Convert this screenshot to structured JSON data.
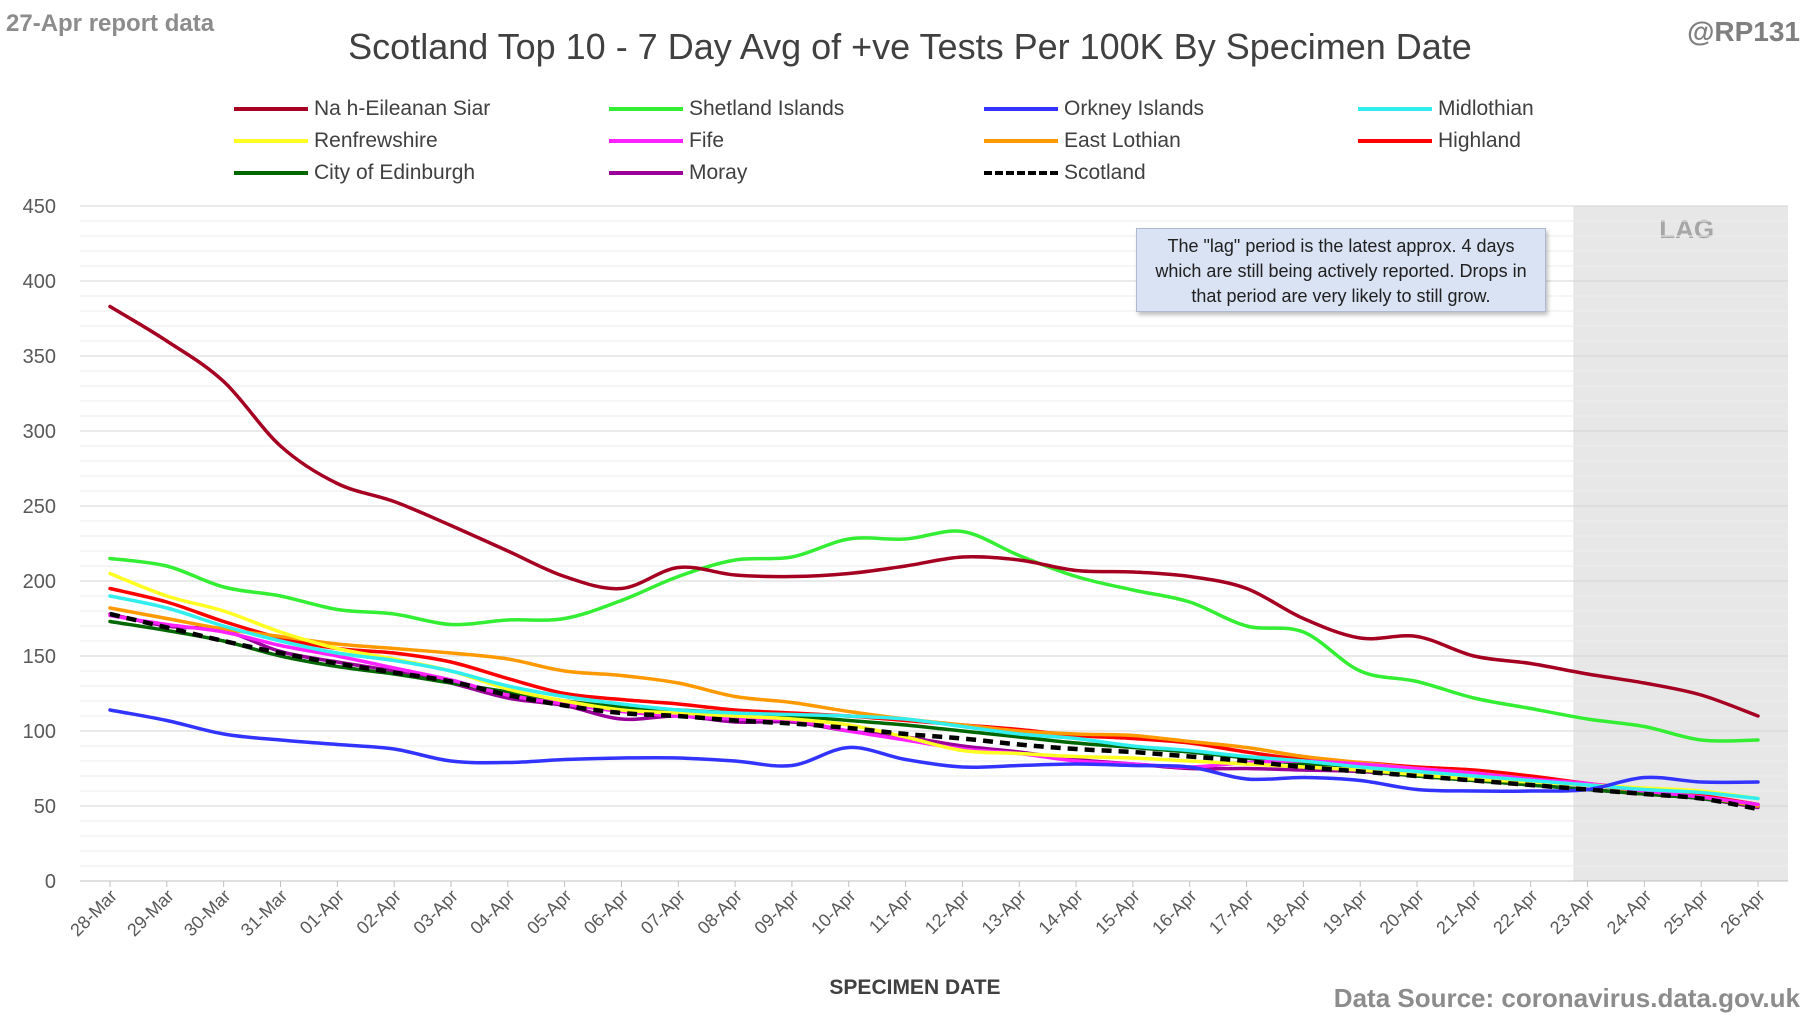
{
  "report_label": "27-Apr report data",
  "handle": "@RP131",
  "source": "Data Source: coronavirus.data.gov.uk",
  "note": "The \"lag\" period is the latest approx. 4 days which are still being actively reported. Drops in that period are very likely to still grow.",
  "chart_data": {
    "type": "line",
    "title": "Scotland Top 10 - 7 Day Avg of +ve Tests Per 100K By Specimen Date",
    "xlabel": "SPECIMEN DATE",
    "ylabel": "",
    "ylim": [
      0,
      450
    ],
    "yticks": [
      0,
      50,
      100,
      150,
      200,
      250,
      300,
      350,
      400,
      450
    ],
    "grid": true,
    "legend_position": "top",
    "lag_region": {
      "label": "LAG",
      "from": "23-Apr",
      "to": "26-Apr"
    },
    "categories": [
      "28-Mar",
      "29-Mar",
      "30-Mar",
      "31-Mar",
      "01-Apr",
      "02-Apr",
      "03-Apr",
      "04-Apr",
      "05-Apr",
      "06-Apr",
      "07-Apr",
      "08-Apr",
      "09-Apr",
      "10-Apr",
      "11-Apr",
      "12-Apr",
      "13-Apr",
      "14-Apr",
      "15-Apr",
      "16-Apr",
      "17-Apr",
      "18-Apr",
      "19-Apr",
      "20-Apr",
      "21-Apr",
      "22-Apr",
      "23-Apr",
      "24-Apr",
      "25-Apr",
      "26-Apr"
    ],
    "series": [
      {
        "name": "Na h-Eileanan Siar",
        "color": "#a50021",
        "dashed": false,
        "values": [
          383,
          360,
          333,
          290,
          265,
          253,
          237,
          220,
          203,
          195,
          209,
          204,
          203,
          205,
          210,
          216,
          214,
          207,
          206,
          203,
          195,
          175,
          162,
          163,
          150,
          145,
          138,
          132,
          124,
          110
        ]
      },
      {
        "name": "Shetland Islands",
        "color": "#33ee33",
        "dashed": false,
        "values": [
          215,
          210,
          196,
          190,
          181,
          178,
          171,
          174,
          175,
          187,
          203,
          214,
          216,
          228,
          228,
          233,
          217,
          203,
          194,
          186,
          170,
          166,
          140,
          133,
          122,
          115,
          108,
          103,
          94,
          94
        ]
      },
      {
        "name": "Orkney Islands",
        "color": "#3333ff",
        "dashed": false,
        "values": [
          114,
          107,
          98,
          94,
          91,
          88,
          80,
          79,
          81,
          82,
          82,
          80,
          77,
          89,
          81,
          76,
          77,
          78,
          77,
          76,
          68,
          69,
          67,
          61,
          60,
          60,
          61,
          69,
          66,
          66
        ]
      },
      {
        "name": "Midlothian",
        "color": "#33eeee",
        "dashed": false,
        "values": [
          190,
          182,
          170,
          160,
          152,
          147,
          140,
          130,
          123,
          118,
          114,
          112,
          111,
          110,
          108,
          103,
          98,
          95,
          90,
          87,
          83,
          80,
          76,
          73,
          70,
          67,
          64,
          61,
          59,
          55
        ]
      },
      {
        "name": "Renfrewshire",
        "color": "#ffff22",
        "dashed": false,
        "values": [
          205,
          190,
          180,
          166,
          155,
          148,
          140,
          128,
          120,
          114,
          112,
          110,
          108,
          104,
          96,
          87,
          85,
          83,
          82,
          80,
          78,
          76,
          74,
          71,
          68,
          66,
          64,
          62,
          60,
          55
        ]
      },
      {
        "name": "Fife",
        "color": "#ff22ff",
        "dashed": false,
        "values": [
          177,
          171,
          166,
          157,
          150,
          142,
          134,
          124,
          118,
          113,
          110,
          108,
          107,
          100,
          94,
          88,
          85,
          80,
          78,
          76,
          79,
          80,
          78,
          75,
          72,
          68,
          65,
          60,
          56,
          51
        ]
      },
      {
        "name": "East Lothian",
        "color": "#ff9900",
        "dashed": false,
        "values": [
          182,
          175,
          168,
          163,
          158,
          155,
          152,
          148,
          140,
          137,
          132,
          123,
          119,
          113,
          108,
          104,
          100,
          98,
          97,
          93,
          89,
          83,
          79,
          75,
          72,
          68,
          64,
          60,
          56,
          50
        ]
      },
      {
        "name": "Highland",
        "color": "#ff0000",
        "dashed": false,
        "values": [
          195,
          186,
          173,
          162,
          155,
          152,
          146,
          135,
          125,
          121,
          118,
          114,
          112,
          110,
          107,
          104,
          101,
          97,
          95,
          92,
          86,
          81,
          79,
          76,
          74,
          70,
          65,
          61,
          57,
          51
        ]
      },
      {
        "name": "City of Edinburgh",
        "color": "#006600",
        "dashed": false,
        "values": [
          173,
          167,
          160,
          150,
          143,
          138,
          132,
          126,
          120,
          116,
          114,
          112,
          110,
          107,
          104,
          100,
          96,
          92,
          89,
          86,
          82,
          78,
          74,
          70,
          67,
          64,
          61,
          58,
          55,
          50
        ]
      },
      {
        "name": "Moray",
        "color": "#990099",
        "dashed": false,
        "values": [
          178,
          170,
          167,
          153,
          146,
          140,
          132,
          122,
          117,
          108,
          110,
          106,
          106,
          100,
          96,
          90,
          86,
          81,
          78,
          75,
          75,
          74,
          73,
          70,
          67,
          64,
          61,
          58,
          55,
          49
        ]
      },
      {
        "name": "Scotland",
        "color": "#000000",
        "dashed": true,
        "values": [
          178,
          169,
          160,
          152,
          145,
          139,
          133,
          124,
          117,
          112,
          110,
          107,
          105,
          102,
          98,
          95,
          91,
          88,
          86,
          83,
          80,
          76,
          73,
          70,
          67,
          64,
          61,
          58,
          55,
          48
        ]
      }
    ]
  }
}
